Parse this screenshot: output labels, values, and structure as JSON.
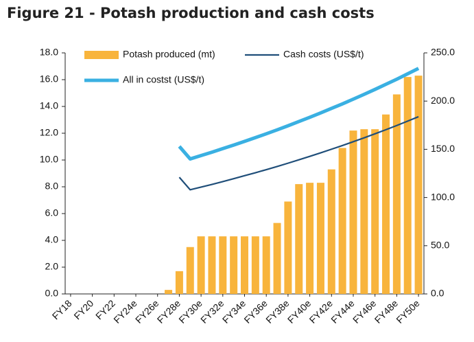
{
  "chart_data": {
    "type": "bar_line",
    "title": "Figure 21 - Potash production and cash costs",
    "categories": [
      "FY18",
      null,
      "FY20",
      null,
      "FY22",
      null,
      "FY24e",
      null,
      "FY26e",
      null,
      "FY28e",
      null,
      "FY30e",
      null,
      "FY32e",
      null,
      "FY34e",
      null,
      "FY36e",
      null,
      "FY38e",
      null,
      "FY40e",
      null,
      "FY42e",
      null,
      "FY44e",
      null,
      "FY46e",
      null,
      "FY48e",
      null,
      "FY50e"
    ],
    "series": [
      {
        "name": "Potash produced (mt)",
        "type": "bar",
        "color": "#f8b43c",
        "values": [
          0,
          0,
          0,
          0,
          0,
          0,
          0,
          0,
          0,
          0.3,
          1.7,
          3.5,
          4.3,
          4.3,
          4.3,
          4.3,
          4.3,
          4.3,
          4.3,
          5.3,
          6.9,
          8.2,
          8.3,
          8.3,
          9.3,
          10.9,
          12.2,
          12.3,
          12.3,
          13.4,
          14.9,
          16.2,
          16.3
        ]
      },
      {
        "name": "Cash costs (US$/t)",
        "type": "line",
        "axis": "y2",
        "color": "#1f4e79",
        "values": [
          null,
          null,
          null,
          null,
          null,
          null,
          null,
          null,
          null,
          null,
          121,
          108,
          110.8,
          113.6,
          116.5,
          119.5,
          122.6,
          125.7,
          128.9,
          132.2,
          135.6,
          139.1,
          142.7,
          146.3,
          150.1,
          153.9,
          157.9,
          161.9,
          166.1,
          170.3,
          174.7,
          179.2,
          183.8
        ]
      },
      {
        "name": "All in costst (US$/t)",
        "type": "line",
        "axis": "y2",
        "color": "#3ab0e2",
        "values": [
          null,
          null,
          null,
          null,
          null,
          null,
          null,
          null,
          null,
          null,
          153,
          140,
          143.5,
          147.0,
          150.7,
          154.4,
          158.2,
          162.1,
          166.1,
          170.2,
          174.4,
          178.8,
          183.2,
          187.7,
          192.4,
          197.1,
          202.0,
          207.0,
          212.1,
          217.4,
          222.7,
          228.3,
          233.9
        ]
      }
    ],
    "ylim": [
      0,
      18
    ],
    "yticks": [
      {
        "value": 0,
        "label": "0.0"
      },
      {
        "value": 2,
        "label": "2.0"
      },
      {
        "value": 4,
        "label": "4.0"
      },
      {
        "value": 6,
        "label": "6.0"
      },
      {
        "value": 8,
        "label": "8.0"
      },
      {
        "value": 10,
        "label": "10.0"
      },
      {
        "value": 12,
        "label": "12.0"
      },
      {
        "value": 14,
        "label": "14.0"
      },
      {
        "value": 16,
        "label": "16.0"
      },
      {
        "value": 18,
        "label": "18.0"
      }
    ],
    "y2lim": [
      0,
      250
    ],
    "y2ticks": [
      {
        "value": 0,
        "label": "0.0"
      },
      {
        "value": 50,
        "label": "50.0"
      },
      {
        "value": 100,
        "label": "100.0"
      },
      {
        "value": 150,
        "label": "150.0"
      },
      {
        "value": 200,
        "label": "200.0"
      },
      {
        "value": 250,
        "label": "250.0"
      }
    ]
  }
}
